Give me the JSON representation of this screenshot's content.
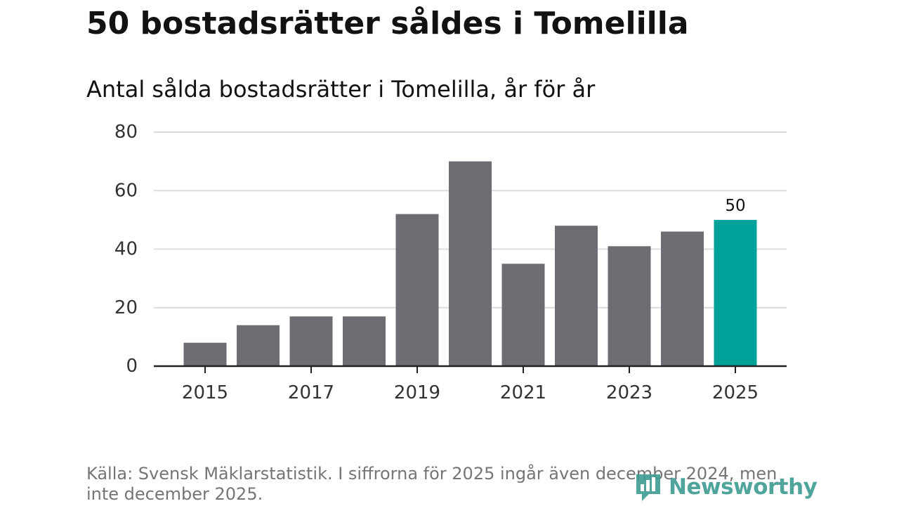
{
  "header": {
    "title": "50 bostadsrätter såldes i Tomelilla",
    "subtitle": "Antal sålda bostadsrätter i Tomelilla, år för år"
  },
  "footer": {
    "source": "Källa: Svensk Mäklarstatistik. I siffrorna för 2025 ingår även december 2024, men inte december 2025.",
    "brand": "Newsworthy"
  },
  "colors": {
    "bar": "#6d6c72",
    "highlight": "#00a29a",
    "grid": "#dcdcdc",
    "axis": "#222222",
    "text": "#121212",
    "muted": "#757575",
    "brand": "#3d9c92"
  },
  "chart_data": {
    "type": "bar",
    "title": "Antal sålda bostadsrätter i Tomelilla, år för år",
    "xlabel": "",
    "ylabel": "",
    "categories": [
      "2015",
      "2016",
      "2017",
      "2018",
      "2019",
      "2020",
      "2021",
      "2022",
      "2023",
      "2024",
      "2025"
    ],
    "values": [
      8,
      14,
      17,
      17,
      52,
      70,
      35,
      48,
      41,
      46,
      50
    ],
    "ylim": [
      0,
      80
    ],
    "yticks": [
      0,
      20,
      40,
      60,
      80
    ],
    "xtick_labels": [
      "2015",
      "2017",
      "2019",
      "2021",
      "2023",
      "2025"
    ],
    "highlight_category": "2025",
    "data_labels": [
      {
        "category": "2025",
        "text": "50"
      }
    ],
    "grid": true,
    "legend": "none"
  }
}
